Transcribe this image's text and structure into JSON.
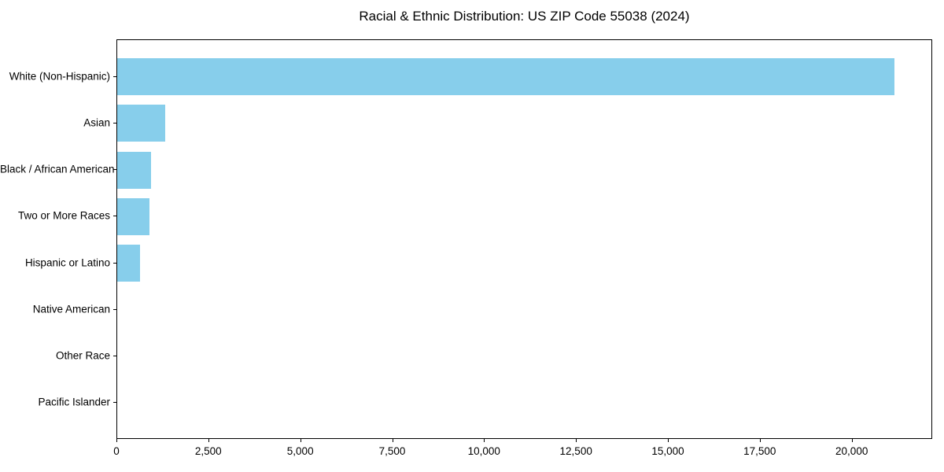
{
  "chart_data": {
    "type": "bar",
    "orientation": "horizontal",
    "title": "Racial & Ethnic Distribution: US ZIP Code 55038 (2024)",
    "categories": [
      "White (Non-Hispanic)",
      "Asian",
      "Black / African American",
      "Two or More Races",
      "Hispanic or Latino",
      "Native American",
      "Other Race",
      "Pacific Islander"
    ],
    "values": [
      21130,
      1310,
      910,
      880,
      620,
      0,
      0,
      0
    ],
    "xlabel": "",
    "ylabel": "",
    "xlim": [
      0,
      22190
    ],
    "xticks": [
      0,
      2500,
      5000,
      7500,
      10000,
      12500,
      15000,
      17500,
      20000
    ],
    "xtick_labels": [
      "0",
      "2,500",
      "5,000",
      "7,500",
      "10,000",
      "12,500",
      "15,000",
      "17,500",
      "20,000"
    ],
    "bar_color": "#87CEEB",
    "axis_color": "#000000",
    "background_color": "#ffffff",
    "grid": false,
    "legend": null
  }
}
